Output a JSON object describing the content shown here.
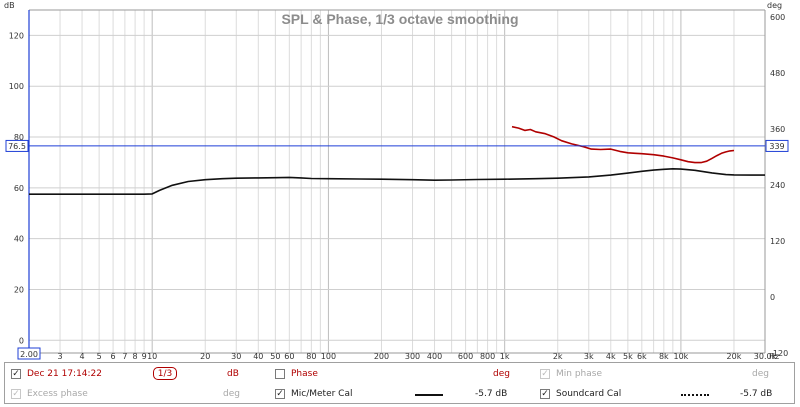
{
  "chart_data": {
    "type": "line",
    "title": "SPL & Phase, 1/3 octave smoothing",
    "left_unit": "dB",
    "right_unit": "deg",
    "xscale": "log",
    "x_unit": "Hz",
    "xlim": [
      2,
      30000
    ],
    "ylim": [
      -5,
      130
    ],
    "y2lim": [
      -120,
      615
    ],
    "x_ticks": [
      {
        "v": 2,
        "label": "2.00"
      },
      {
        "v": 3,
        "label": "3"
      },
      {
        "v": 4,
        "label": "4"
      },
      {
        "v": 5,
        "label": "5"
      },
      {
        "v": 6,
        "label": "6"
      },
      {
        "v": 7,
        "label": "7"
      },
      {
        "v": 8,
        "label": "8"
      },
      {
        "v": 9,
        "label": "9"
      },
      {
        "v": 10,
        "label": "10"
      },
      {
        "v": 20,
        "label": "20"
      },
      {
        "v": 30,
        "label": "30"
      },
      {
        "v": 40,
        "label": "40"
      },
      {
        "v": 50,
        "label": "50"
      },
      {
        "v": 60,
        "label": "60"
      },
      {
        "v": 80,
        "label": "80"
      },
      {
        "v": 100,
        "label": "100"
      },
      {
        "v": 200,
        "label": "200"
      },
      {
        "v": 300,
        "label": "300"
      },
      {
        "v": 400,
        "label": "400"
      },
      {
        "v": 600,
        "label": "600"
      },
      {
        "v": 800,
        "label": "800"
      },
      {
        "v": 1000,
        "label": "1k"
      },
      {
        "v": 2000,
        "label": "2k"
      },
      {
        "v": 3000,
        "label": "3k"
      },
      {
        "v": 4000,
        "label": "4k"
      },
      {
        "v": 5000,
        "label": "5k"
      },
      {
        "v": 6000,
        "label": "6k"
      },
      {
        "v": 8000,
        "label": "8k"
      },
      {
        "v": 10000,
        "label": "10k"
      },
      {
        "v": 20000,
        "label": "20k"
      },
      {
        "v": 30000,
        "label": "30.0k"
      }
    ],
    "y_ticks": [
      0,
      20,
      40,
      60,
      80,
      100,
      120
    ],
    "y2_ticks": [
      -120,
      0,
      120,
      240,
      360,
      480,
      600
    ],
    "cursor": {
      "y": 76.5,
      "label": "76.5",
      "y2": 339,
      "label2": "339"
    },
    "grid": true,
    "series": [
      {
        "name": "Dec 21 17:14:22",
        "axis": "left",
        "color": "#111111",
        "points": [
          [
            2,
            57.5
          ],
          [
            5,
            57.5
          ],
          [
            9,
            57.5
          ],
          [
            10,
            57.6
          ],
          [
            11,
            59
          ],
          [
            13,
            61
          ],
          [
            16,
            62.5
          ],
          [
            20,
            63.2
          ],
          [
            25,
            63.6
          ],
          [
            30,
            63.8
          ],
          [
            40,
            63.9
          ],
          [
            50,
            64
          ],
          [
            60,
            64.1
          ],
          [
            70,
            63.9
          ],
          [
            80,
            63.7
          ],
          [
            100,
            63.6
          ],
          [
            150,
            63.5
          ],
          [
            200,
            63.4
          ],
          [
            300,
            63.2
          ],
          [
            400,
            63
          ],
          [
            500,
            63.1
          ],
          [
            700,
            63.3
          ],
          [
            1000,
            63.4
          ],
          [
            1500,
            63.6
          ],
          [
            2000,
            63.8
          ],
          [
            3000,
            64.3
          ],
          [
            4000,
            65
          ],
          [
            5000,
            65.8
          ],
          [
            6000,
            66.5
          ],
          [
            7000,
            67
          ],
          [
            8000,
            67.3
          ],
          [
            9000,
            67.5
          ],
          [
            10000,
            67.4
          ],
          [
            12000,
            66.9
          ],
          [
            15000,
            65.9
          ],
          [
            18000,
            65.2
          ],
          [
            20000,
            65.1
          ],
          [
            25000,
            65
          ],
          [
            30000,
            65
          ]
        ]
      },
      {
        "name": "Phase",
        "axis": "right",
        "color": "#b00000",
        "points": [
          [
            1100,
            365
          ],
          [
            1200,
            362
          ],
          [
            1300,
            357
          ],
          [
            1400,
            359
          ],
          [
            1500,
            354
          ],
          [
            1700,
            350
          ],
          [
            1900,
            343
          ],
          [
            2100,
            335
          ],
          [
            2400,
            328
          ],
          [
            2800,
            322
          ],
          [
            3100,
            317
          ],
          [
            3500,
            316
          ],
          [
            4000,
            317
          ],
          [
            4500,
            312
          ],
          [
            5000,
            309
          ],
          [
            5500,
            308
          ],
          [
            6000,
            307
          ],
          [
            7000,
            305
          ],
          [
            8000,
            302
          ],
          [
            9000,
            298
          ],
          [
            10000,
            294
          ],
          [
            11000,
            290
          ],
          [
            12000,
            288
          ],
          [
            13000,
            288
          ],
          [
            14000,
            291
          ],
          [
            15000,
            297
          ],
          [
            16000,
            303
          ],
          [
            17000,
            308
          ],
          [
            18000,
            311
          ],
          [
            19000,
            313
          ],
          [
            20000,
            314
          ]
        ]
      }
    ]
  },
  "legend": {
    "row1": {
      "measurement": "Dec 21 17:14:22",
      "smoothing": "1/3",
      "measurement_unit": "dB",
      "phase": "Phase",
      "phase_unit": "deg",
      "min_phase": "Min phase",
      "min_phase_unit": "deg"
    },
    "row2": {
      "excess_phase": "Excess phase",
      "excess_phase_unit": "deg",
      "mic_cal": "Mic/Meter Cal",
      "mic_cal_value": "-5.7 dB",
      "soundcard_cal": "Soundcard Cal",
      "soundcard_cal_value": "-5.7 dB"
    }
  }
}
